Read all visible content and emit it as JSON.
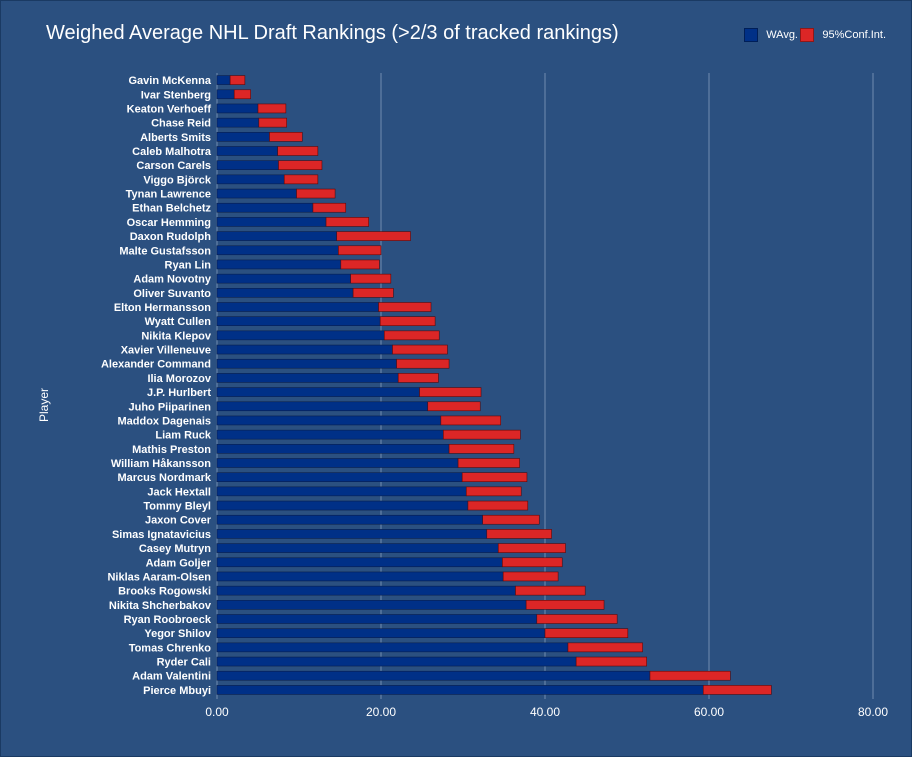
{
  "chart_data": {
    "type": "bar",
    "orientation": "horizontal",
    "stacked": true,
    "title": "Weighed Average NHL Draft Rankings (>2/3 of tracked rankings)",
    "xlabel": "",
    "ylabel": "Player",
    "xlim": [
      0,
      80
    ],
    "xticks": [
      "0.00",
      "20.00",
      "40.00",
      "60.00",
      "80.00"
    ],
    "grid": true,
    "legend_position": "top-right",
    "categories": [
      "Gavin McKenna",
      "Ivar Stenberg",
      "Keaton Verhoeff",
      "Chase Reid",
      "Alberts Smits",
      "Caleb Malhotra",
      "Carson Carels",
      "Viggo Björck",
      "Tynan Lawrence",
      "Ethan Belchetz",
      "Oscar Hemming",
      "Daxon Rudolph",
      "Malte Gustafsson",
      "Ryan Lin",
      "Adam Novotny",
      "Oliver Suvanto",
      "Elton Hermansson",
      "Wyatt Cullen",
      "Nikita Klepov",
      "Xavier Villeneuve",
      "Alexander Command",
      "Ilia Morozov",
      "J.P. Hurlbert",
      "Juho Piiparinen",
      "Maddox Dagenais",
      "Liam Ruck",
      "Mathis Preston",
      "William Håkansson",
      "Marcus Nordmark",
      "Jack Hextall",
      "Tommy Bleyl",
      "Jaxon Cover",
      "Simas Ignatavicius",
      "Casey Mutryn",
      "Adam Goljer",
      "Niklas Aaram-Olsen",
      "Brooks Rogowski",
      "Nikita Shcherbakov",
      "Ryan Roobroeck",
      "Yegor Shilov",
      "Tomas Chrenko",
      "Ryder Cali",
      "Adam Valentini",
      "Pierce Mbuyi"
    ],
    "series": [
      {
        "name": "WAvg.",
        "color": "#003087",
        "values": [
          1.6,
          2.1,
          5.0,
          5.1,
          6.4,
          7.4,
          7.5,
          8.2,
          9.7,
          11.7,
          13.3,
          14.6,
          14.8,
          15.1,
          16.3,
          16.6,
          19.7,
          19.9,
          20.4,
          21.4,
          21.9,
          22.1,
          24.7,
          25.7,
          27.3,
          27.6,
          28.3,
          29.4,
          29.9,
          30.4,
          30.6,
          32.4,
          32.9,
          34.3,
          34.8,
          34.9,
          36.4,
          37.7,
          39.0,
          40.0,
          42.8,
          43.8,
          52.8,
          59.3
        ],
        "ci_low": [
          1.6,
          2.1,
          5.0,
          5.1,
          6.4,
          7.4,
          7.5,
          8.2,
          9.7,
          11.7,
          13.3,
          14.6,
          14.8,
          15.1,
          16.3,
          16.6,
          19.7,
          19.9,
          20.4,
          21.4,
          21.9,
          22.1,
          24.7,
          25.7,
          27.3,
          27.6,
          28.3,
          29.4,
          29.9,
          30.4,
          30.6,
          32.4,
          32.9,
          34.3,
          34.8,
          34.9,
          36.4,
          37.7,
          39.0,
          40.0,
          42.8,
          43.8,
          52.8,
          59.3
        ]
      },
      {
        "name": "95%Conf.Int.",
        "color": "#dc2626",
        "values": [
          1.8,
          2.0,
          3.4,
          3.4,
          4.0,
          4.9,
          5.3,
          4.1,
          4.7,
          4.0,
          5.2,
          9.0,
          5.2,
          4.7,
          4.9,
          4.9,
          6.4,
          6.7,
          6.7,
          6.7,
          6.4,
          4.9,
          7.5,
          6.4,
          7.3,
          9.4,
          7.9,
          7.5,
          7.9,
          6.7,
          7.3,
          6.9,
          7.9,
          8.2,
          7.3,
          6.7,
          8.5,
          9.5,
          9.8,
          10.1,
          9.1,
          8.6,
          9.8,
          8.3
        ]
      }
    ]
  }
}
